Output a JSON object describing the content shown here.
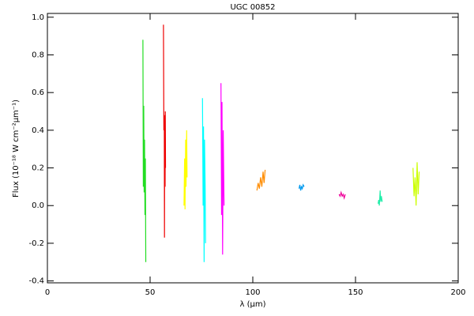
{
  "chart_data": {
    "type": "line",
    "title": "UGC 00852",
    "xlabel": "λ (μm)",
    "ylabel": "Flux (10⁻¹⁸ W cm⁻²μm⁻¹)",
    "xlim": [
      0,
      200
    ],
    "ylim": [
      -0.41,
      1.02
    ],
    "xticks": [
      0,
      50,
      100,
      150,
      200
    ],
    "yticks": [
      -0.4,
      -0.2,
      {
        "value": 0,
        "label": "0.0"
      },
      0.2,
      0.4,
      0.6,
      0.8,
      {
        "value": 1,
        "label": "1.0"
      }
    ],
    "series": [
      {
        "color": "#22dd22",
        "x": [
          46.5,
          46.7,
          46.9,
          47.1,
          47.3,
          47.5,
          47.7,
          47.9
        ],
        "values": [
          0.88,
          0.1,
          0.53,
          0.07,
          0.35,
          -0.05,
          0.25,
          -0.3
        ]
      },
      {
        "color": "#ee0000",
        "x": [
          56.5,
          56.7,
          56.9,
          57.0,
          57.1,
          57.3,
          57.4,
          57.5
        ],
        "values": [
          0.96,
          0.4,
          0.48,
          -0.17,
          0.45,
          0.1,
          0.5,
          0.2
        ]
      },
      {
        "color": "#ffff00",
        "x": [
          66.5,
          66.8,
          67.0,
          67.3,
          67.5,
          67.8,
          68.0
        ],
        "values": [
          0.0,
          0.25,
          -0.02,
          0.35,
          0.1,
          0.4,
          0.15
        ]
      },
      {
        "color": "#00ffff",
        "x": [
          75.5,
          75.8,
          76.0,
          76.3,
          76.5,
          76.8,
          77.0
        ],
        "values": [
          0.57,
          0.0,
          0.42,
          -0.3,
          0.35,
          0.1,
          -0.2
        ]
      },
      {
        "color": "#ff00ff",
        "x": [
          84.5,
          84.8,
          85.0,
          85.3,
          85.6,
          86.0
        ],
        "values": [
          0.65,
          -0.05,
          0.55,
          -0.26,
          0.4,
          0.0
        ]
      },
      {
        "color": "#ff8c00",
        "x": [
          102.0,
          102.6,
          103.2,
          103.8,
          104.4,
          105.0,
          105.5,
          106.0
        ],
        "values": [
          0.08,
          0.12,
          0.09,
          0.15,
          0.1,
          0.18,
          0.12,
          0.19
        ]
      },
      {
        "color": "#0099ee",
        "x": [
          122.5,
          122.9,
          123.3,
          123.7,
          124.1,
          124.5,
          125.0
        ],
        "values": [
          0.09,
          0.11,
          0.08,
          0.1,
          0.09,
          0.11,
          0.1
        ]
      },
      {
        "color": "#ee0099",
        "x": [
          142.0,
          142.5,
          143.0,
          143.5,
          144.0,
          144.5,
          145.0
        ],
        "values": [
          0.06,
          0.05,
          0.07,
          0.05,
          0.06,
          0.04,
          0.06
        ]
      },
      {
        "color": "#22eeaa",
        "x": [
          161.0,
          161.3,
          161.6,
          162.0,
          162.3,
          162.6,
          163.0
        ],
        "values": [
          0.01,
          0.03,
          0.0,
          0.08,
          0.02,
          0.05,
          0.02
        ]
      },
      {
        "color": "#ccff00",
        "x": [
          178.0,
          178.5,
          179.0,
          179.5,
          180.0,
          180.5,
          181.0
        ],
        "values": [
          0.2,
          0.05,
          0.15,
          0.0,
          0.23,
          0.06,
          0.18
        ]
      }
    ]
  }
}
